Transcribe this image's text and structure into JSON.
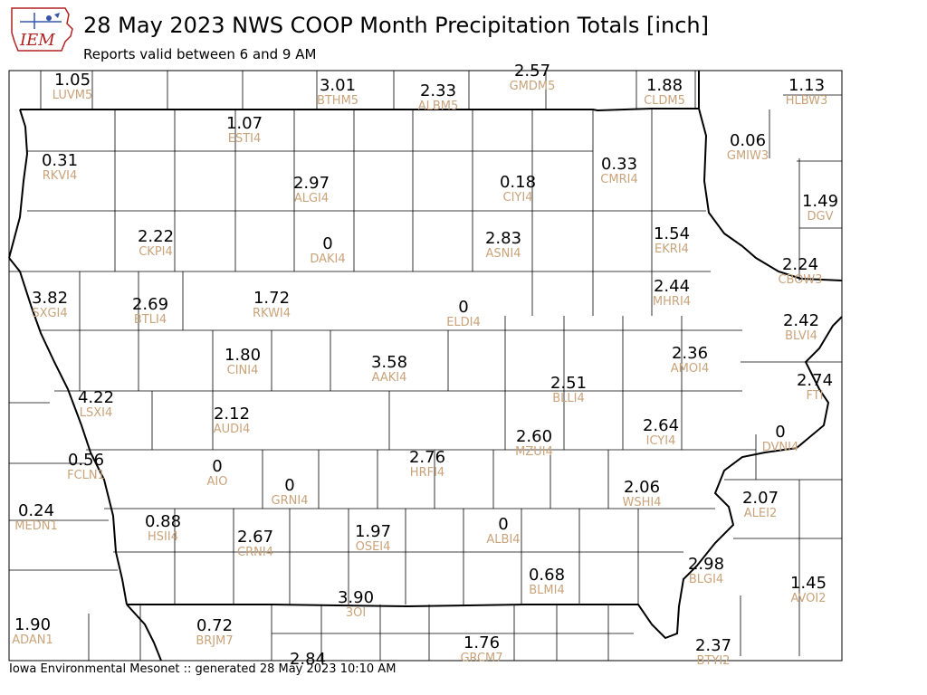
{
  "header": {
    "logo_text": "IEM",
    "title": "28 May 2023 NWS COOP Month Precipitation Totals [inch]",
    "subtitle": "Reports valid between 6 and 9 AM"
  },
  "footer": {
    "text": "Iowa Environmental Mesonet :: generated 28 May 2023 10:10 AM"
  },
  "colors": {
    "value_text": "#000000",
    "station_text": "#c9a37a",
    "county_lines": "#000000",
    "state_border": "#000000"
  },
  "stations": [
    {
      "value": "1.05",
      "id": "LUVM5"
    },
    {
      "value": "3.01",
      "id": "BTHM5"
    },
    {
      "value": "2.33",
      "id": "ALBM5"
    },
    {
      "value": "2.57",
      "id": "GMDM5"
    },
    {
      "value": "1.88",
      "id": "CLDM5"
    },
    {
      "value": "1.13",
      "id": "HLBW3"
    },
    {
      "value": "1.07",
      "id": "ESTI4"
    },
    {
      "value": "0.31",
      "id": "RKVI4"
    },
    {
      "value": "2.97",
      "id": "ALGI4"
    },
    {
      "value": "0.18",
      "id": "CIYI4"
    },
    {
      "value": "0.33",
      "id": "CMRI4"
    },
    {
      "value": "0.06",
      "id": "GMIW3"
    },
    {
      "value": "1.49",
      "id": "DGV"
    },
    {
      "value": "2.22",
      "id": "CKPI4"
    },
    {
      "value": "0",
      "id": "DAKI4"
    },
    {
      "value": "2.83",
      "id": "ASNI4"
    },
    {
      "value": "1.54",
      "id": "EKRI4"
    },
    {
      "value": "2.24",
      "id": "CBOW3"
    },
    {
      "value": "3.82",
      "id": "SXGI4"
    },
    {
      "value": "2.69",
      "id": "BTLI4"
    },
    {
      "value": "1.72",
      "id": "RKWI4"
    },
    {
      "value": "0",
      "id": "ELDI4"
    },
    {
      "value": "2.44",
      "id": "MHRI4"
    },
    {
      "value": "2.42",
      "id": "BLVI4"
    },
    {
      "value": "1.80",
      "id": "CINI4"
    },
    {
      "value": "3.58",
      "id": "AAKI4"
    },
    {
      "value": "2.36",
      "id": "AMOI4"
    },
    {
      "value": "4.22",
      "id": "LSXI4"
    },
    {
      "value": "2.51",
      "id": "BLLI4"
    },
    {
      "value": "2.74",
      "id": "FTI"
    },
    {
      "value": "2.12",
      "id": "AUDI4"
    },
    {
      "value": "2.64",
      "id": "ICYI4"
    },
    {
      "value": "0",
      "id": "DVNI4"
    },
    {
      "value": "0.56",
      "id": "FCLN1"
    },
    {
      "value": "0",
      "id": "AIO"
    },
    {
      "value": "0",
      "id": "GRNI4"
    },
    {
      "value": "2.76",
      "id": "HRFI4"
    },
    {
      "value": "2.60",
      "id": "MZUI4"
    },
    {
      "value": "2.06",
      "id": "WSHI4"
    },
    {
      "value": "2.07",
      "id": "ALEI2"
    },
    {
      "value": "0.24",
      "id": "MEDN1"
    },
    {
      "value": "0.88",
      "id": "HSII4"
    },
    {
      "value": "2.67",
      "id": "CRNI4"
    },
    {
      "value": "1.97",
      "id": "OSEI4"
    },
    {
      "value": "0",
      "id": "ALBI4"
    },
    {
      "value": "0.68",
      "id": "BLMI4"
    },
    {
      "value": "2.98",
      "id": "BLGI4"
    },
    {
      "value": "1.45",
      "id": "AVOI2"
    },
    {
      "value": "3.90",
      "id": "3OI"
    },
    {
      "value": "1.90",
      "id": "ADAN1"
    },
    {
      "value": "0.72",
      "id": "BRJM7"
    },
    {
      "value": "1.76",
      "id": "GRCM7"
    },
    {
      "value": "2.84",
      "id": ""
    },
    {
      "value": "2.37",
      "id": "BTYI2"
    }
  ]
}
